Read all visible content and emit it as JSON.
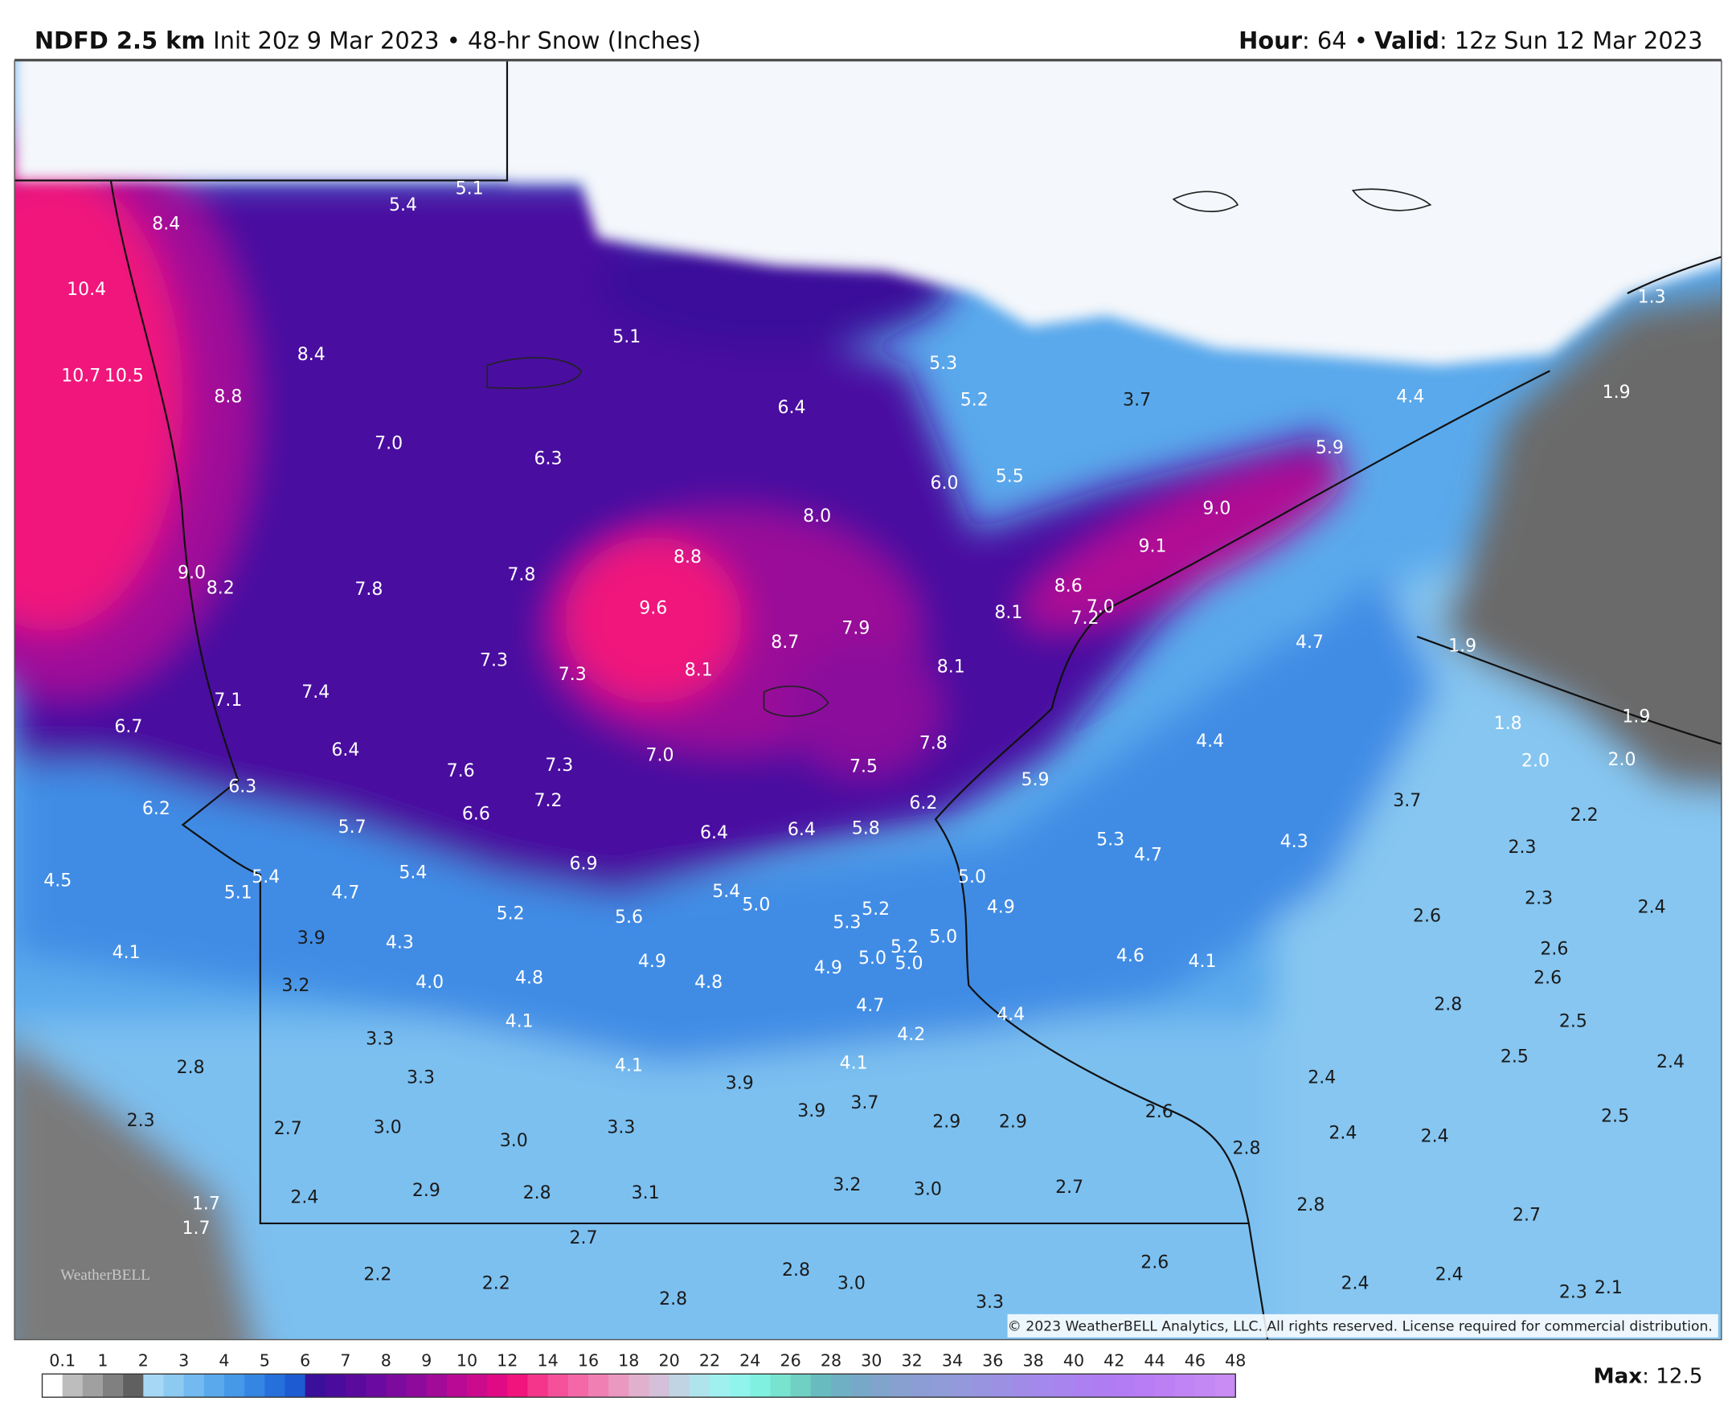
{
  "header": {
    "model": "NDFD 2.5 km",
    "subtitle": "Init 20z 9 Mar 2023 • 48-hr Snow (Inches)",
    "hour_label": "Hour",
    "hour_value": ": 64 •",
    "valid_label": "Valid",
    "valid_value": ": 12z Sun 12 Mar 2023"
  },
  "map": {
    "labels": [
      "8.4",
      "10.4",
      "10.7",
      "10.5",
      "8.8",
      "8.4",
      "7.0",
      "5.4",
      "5.1",
      "5.1",
      "6.3",
      "9.0",
      "8.2",
      "7.8",
      "7.8",
      "7.3",
      "7.3",
      "9.6",
      "8.8",
      "8.1",
      "8.7",
      "7.9",
      "8.0",
      "6.4",
      "5.3",
      "5.2",
      "6.0",
      "5.5",
      "3.7",
      "9.0",
      "9.1",
      "8.6",
      "8.1",
      "7.0",
      "7.2",
      "8.1",
      "7.8",
      "7.5",
      "6.2",
      "5.9",
      "5.9",
      "4.4",
      "1.9",
      "1.3",
      "4.7",
      "1.9",
      "1.8",
      "1.9",
      "2.0",
      "2.0",
      "2.2",
      "3.7",
      "2.3",
      "2.3",
      "2.4",
      "2.6",
      "2.6",
      "2.6",
      "2.8",
      "2.5",
      "2.5",
      "2.4",
      "4.4",
      "4.3",
      "5.3",
      "4.7",
      "5.0",
      "4.9",
      "5.0",
      "4.6",
      "4.1",
      "4.4",
      "7.1",
      "7.4",
      "6.7",
      "6.4",
      "7.6",
      "7.3",
      "7.0",
      "6.6",
      "7.2",
      "6.4",
      "6.4",
      "5.8",
      "6.3",
      "6.2",
      "5.7",
      "4.5",
      "5.4",
      "5.1",
      "4.7",
      "5.4",
      "6.9",
      "5.2",
      "5.6",
      "5.4",
      "5.0",
      "5.3",
      "5.2",
      "4.1",
      "3.9",
      "4.3",
      "3.2",
      "4.0",
      "4.8",
      "4.9",
      "4.8",
      "4.9",
      "5.0",
      "5.2",
      "5.0",
      "4.7",
      "4.2",
      "4.1",
      "3.3",
      "2.8",
      "3.3",
      "4.1",
      "3.9",
      "4.1",
      "3.9",
      "3.7",
      "2.3",
      "2.7",
      "3.0",
      "3.0",
      "3.3",
      "2.9",
      "2.9",
      "2.6",
      "2.4",
      "2.4",
      "2.4",
      "2.5",
      "2.8",
      "1.7",
      "1.7",
      "2.4",
      "2.9",
      "2.8",
      "3.1",
      "3.2",
      "3.0",
      "2.7",
      "2.8",
      "2.7",
      "2.7",
      "2.2",
      "2.2",
      "2.8",
      "2.8",
      "3.0",
      "3.3",
      "2.6",
      "2.4",
      "2.4",
      "2.3",
      "2.1"
    ],
    "logo": "WeatherBELL",
    "copyright": "© 2023 WeatherBELL Analytics, LLC. All rights reserved. License required for commercial distribution."
  },
  "colorbar": {
    "ticks": [
      0.1,
      1,
      2,
      3,
      4,
      5,
      6,
      7,
      8,
      9,
      10,
      12,
      14,
      16,
      18,
      20,
      22,
      24,
      26,
      28,
      30,
      32,
      34,
      36,
      38,
      40,
      42,
      44,
      46,
      48
    ],
    "colors": [
      "#ffffff",
      "#bdbdbd",
      "#a0a0a0",
      "#808080",
      "#606060",
      "#a6d8f5",
      "#8ccaf2",
      "#72baf0",
      "#5aa9ec",
      "#4698e8",
      "#3585e2",
      "#2670dc",
      "#1c5bd2",
      "#3a0f9a",
      "#4a0c9c",
      "#5a0a9e",
      "#6a0aa0",
      "#7c0a9e",
      "#8e0a9c",
      "#a20a98",
      "#b80a94",
      "#cc0a8c",
      "#e00a84",
      "#f0147c",
      "#f5358c",
      "#f5509a",
      "#f468a8",
      "#f080b4",
      "#eb98c0",
      "#e0b0cc",
      "#d4c0d8",
      "#c0d4e4",
      "#b0e4ec",
      "#a0f0f0",
      "#90f4ec",
      "#80f0e0",
      "#78e4d0",
      "#70d0c4",
      "#68bcc0",
      "#70b0c4",
      "#78a8c8",
      "#80a4cc",
      "#88a0d0",
      "#8c9cd4",
      "#909cd8",
      "#9498dc",
      "#9894e0",
      "#9c90e4",
      "#a08ce8",
      "#a488ec",
      "#a884ee",
      "#ac80f0",
      "#b07cf2",
      "#b47cf4",
      "#b87cf4",
      "#bc80f4",
      "#c084f4",
      "#c488f4",
      "#c88cf4"
    ],
    "max_label": "Max",
    "max_value": ": 12.5"
  }
}
